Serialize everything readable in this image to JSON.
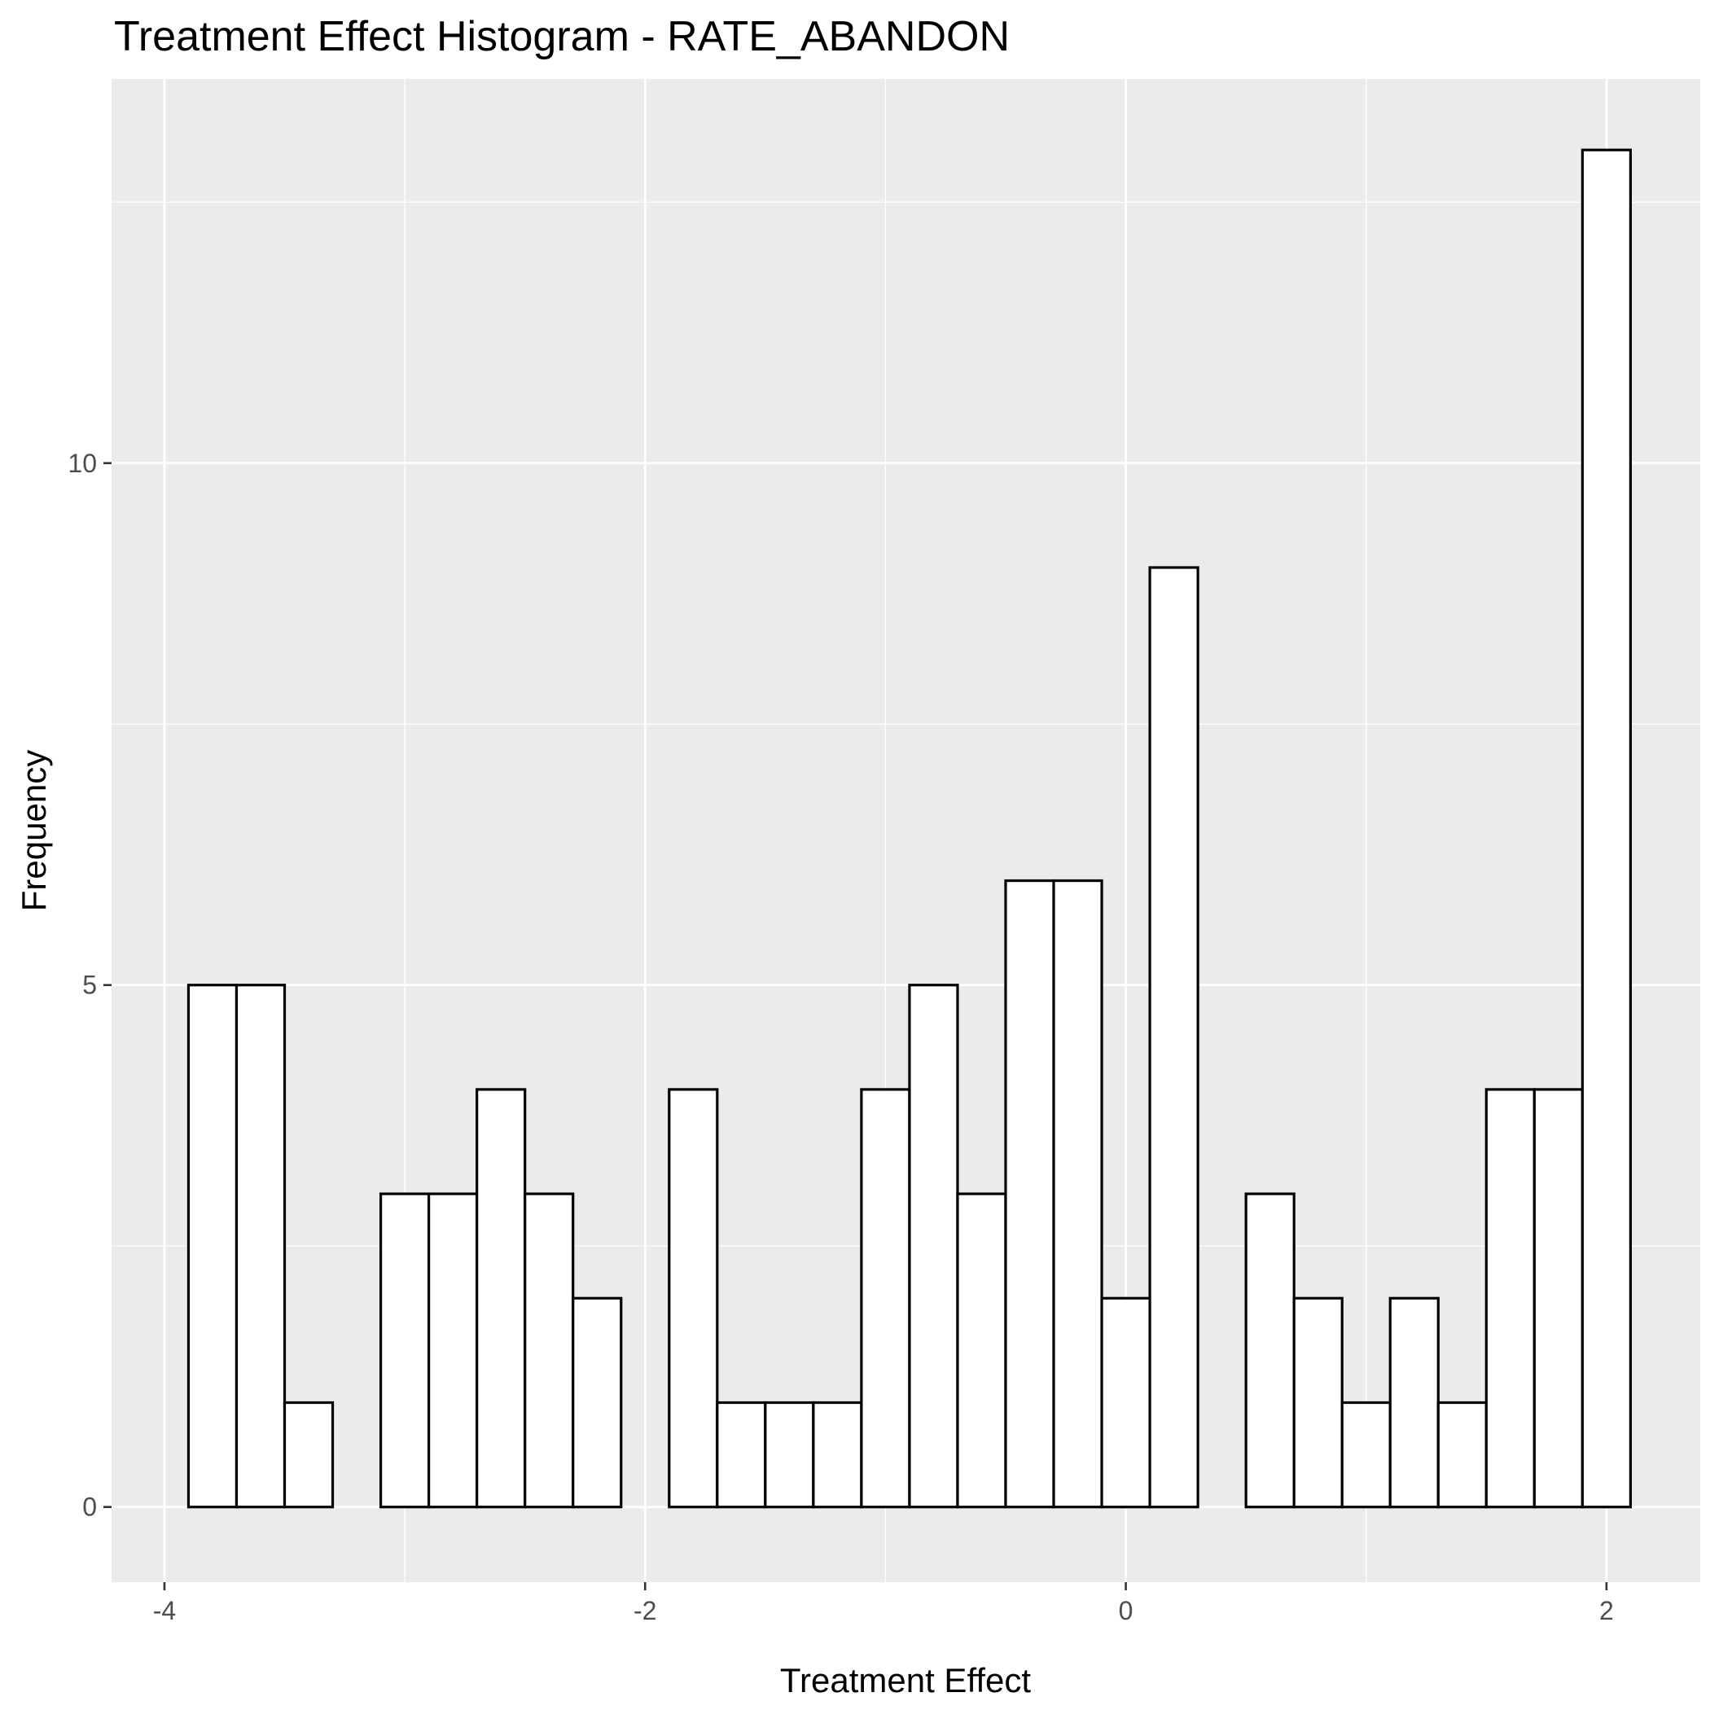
{
  "chart_data": {
    "type": "bar",
    "title": "Treatment Effect Histogram -  RATE_ABANDON",
    "xlabel": "Treatment Effect",
    "ylabel": "Frequency",
    "xlim": [
      -4.22,
      2.39
    ],
    "ylim": [
      -0.72,
      13.68
    ],
    "x_ticks": [
      -4,
      -2,
      0,
      2
    ],
    "x_tick_labels": [
      "-4",
      "-2",
      "0",
      "2"
    ],
    "y_ticks": [
      0,
      5,
      10
    ],
    "y_tick_labels": [
      "0",
      "5",
      "10"
    ],
    "x_minor_ticks": [
      -3,
      -1,
      1
    ],
    "y_minor_ticks": [
      2.5,
      7.5,
      12.5
    ],
    "bin_width": 0.2,
    "bins": [
      {
        "x0": -3.9,
        "x1": -3.7,
        "count": 5
      },
      {
        "x0": -3.7,
        "x1": -3.5,
        "count": 5
      },
      {
        "x0": -3.5,
        "x1": -3.3,
        "count": 1
      },
      {
        "x0": -3.3,
        "x1": -3.1,
        "count": 0
      },
      {
        "x0": -3.1,
        "x1": -2.9,
        "count": 3
      },
      {
        "x0": -2.9,
        "x1": -2.7,
        "count": 3
      },
      {
        "x0": -2.7,
        "x1": -2.5,
        "count": 4
      },
      {
        "x0": -2.5,
        "x1": -2.3,
        "count": 3
      },
      {
        "x0": -2.3,
        "x1": -2.1,
        "count": 2
      },
      {
        "x0": -2.1,
        "x1": -1.9,
        "count": 0
      },
      {
        "x0": -1.9,
        "x1": -1.7,
        "count": 4
      },
      {
        "x0": -1.7,
        "x1": -1.5,
        "count": 1
      },
      {
        "x0": -1.5,
        "x1": -1.3,
        "count": 1
      },
      {
        "x0": -1.3,
        "x1": -1.1,
        "count": 1
      },
      {
        "x0": -1.1,
        "x1": -0.9,
        "count": 4
      },
      {
        "x0": -0.9,
        "x1": -0.7,
        "count": 5
      },
      {
        "x0": -0.7,
        "x1": -0.5,
        "count": 3
      },
      {
        "x0": -0.5,
        "x1": -0.3,
        "count": 6
      },
      {
        "x0": -0.3,
        "x1": -0.1,
        "count": 6
      },
      {
        "x0": -0.1,
        "x1": 0.1,
        "count": 2
      },
      {
        "x0": 0.1,
        "x1": 0.3,
        "count": 9
      },
      {
        "x0": 0.3,
        "x1": 0.5,
        "count": 0
      },
      {
        "x0": 0.5,
        "x1": 0.7,
        "count": 3
      },
      {
        "x0": 0.7,
        "x1": 0.9,
        "count": 2
      },
      {
        "x0": 0.9,
        "x1": 1.1,
        "count": 1
      },
      {
        "x0": 1.1,
        "x1": 1.3,
        "count": 2
      },
      {
        "x0": 1.3,
        "x1": 1.5,
        "count": 1
      },
      {
        "x0": 1.5,
        "x1": 1.7,
        "count": 4
      },
      {
        "x0": 1.7,
        "x1": 1.9,
        "count": 4
      },
      {
        "x0": 1.9,
        "x1": 2.1,
        "count": 13
      }
    ],
    "grid": true,
    "colors": {
      "panel_background": "#ebebeb",
      "grid_line": "#ffffff",
      "bar_fill": "#ffffff",
      "bar_outline": "#000000",
      "tick_mark": "#333333"
    }
  }
}
